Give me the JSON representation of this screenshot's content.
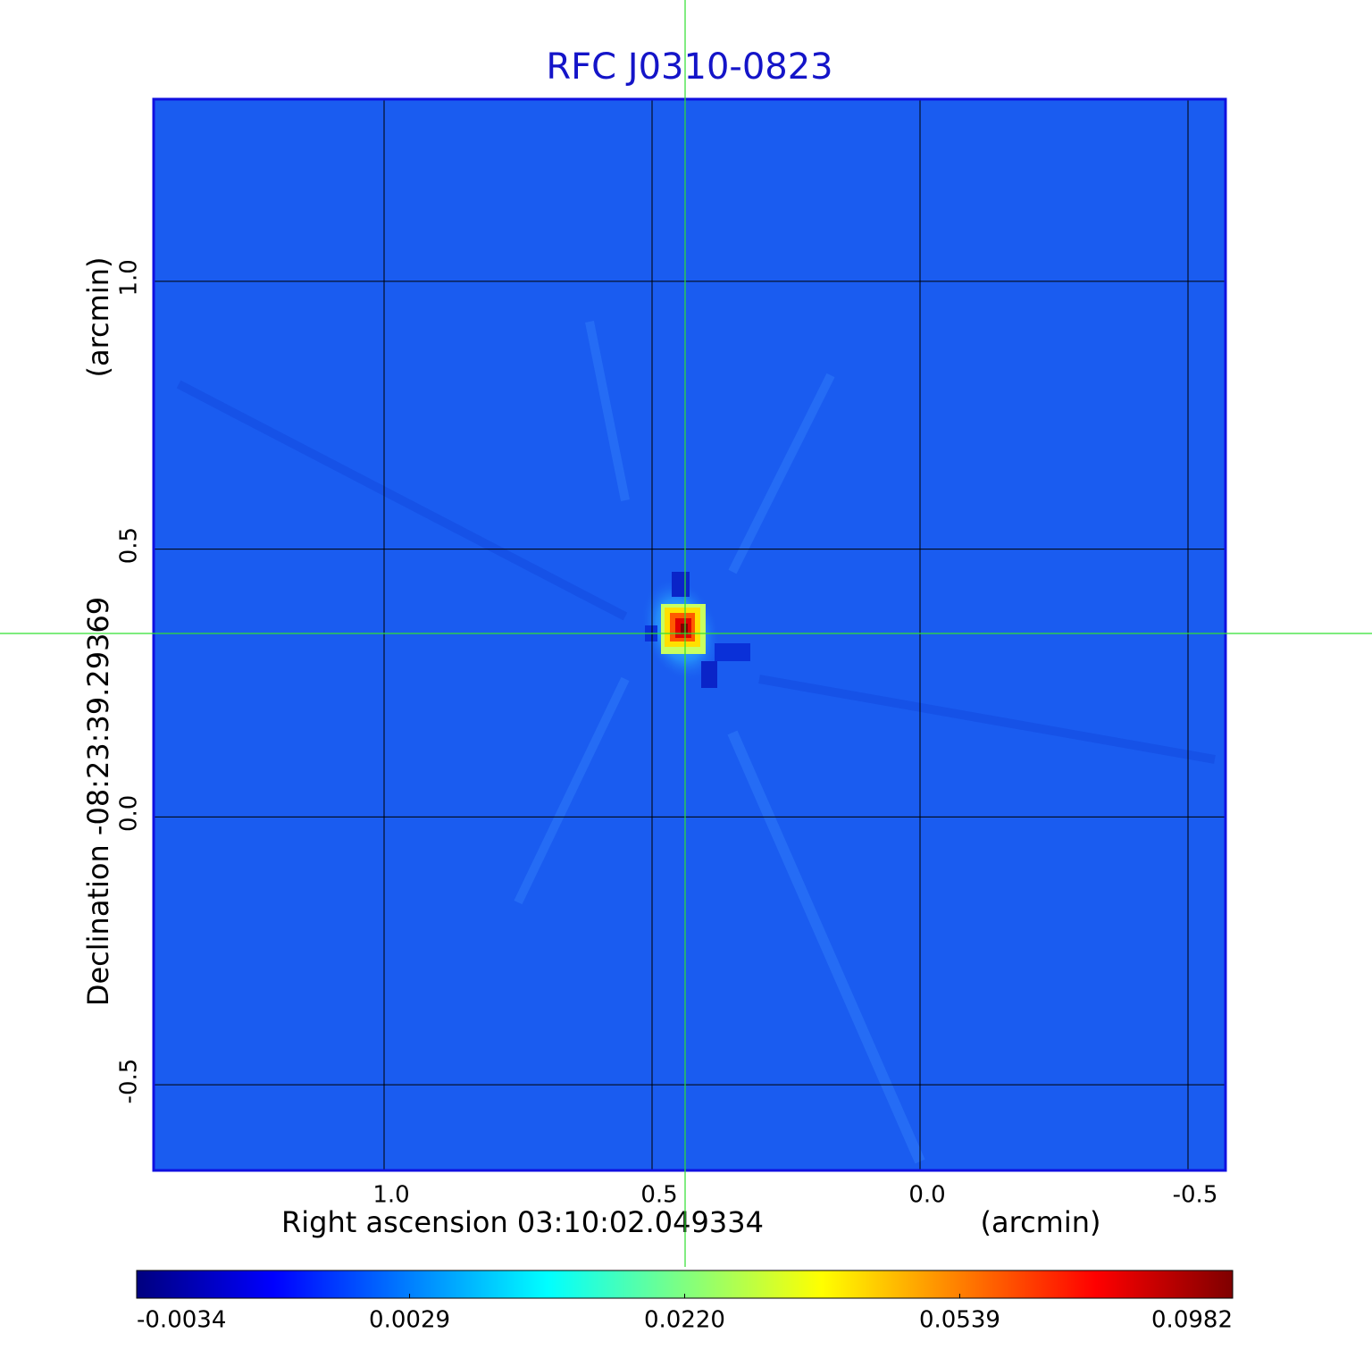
{
  "chart_data": {
    "type": "image",
    "title": "RFC J0310-0823",
    "xlabel": "Right ascension  03:10:02.049334",
    "xunit": "(arcmin)",
    "ylabel": "Declination  -08:23:39.29369",
    "yunit": "(arcmin)",
    "xlim": [
      1.43,
      -0.57
    ],
    "ylim": [
      -0.66,
      1.34
    ],
    "xticks": [
      {
        "value": 1,
        "label": "1.0"
      },
      0.5,
      {
        "value": 0,
        "label": "0.0"
      },
      -0.5
    ],
    "yticks": [
      {
        "value": 1,
        "label": "1.0"
      },
      0.5,
      {
        "value": 0,
        "label": "0.0"
      },
      -0.5
    ],
    "grid": true,
    "colorbar": {
      "scale": "sqrt",
      "lim": [
        -0.0034,
        0.0982
      ],
      "ticks": [
        -0.0034,
        0.0029,
        {
          "value": 0.022,
          "label": "0.0220"
        },
        0.0539,
        0.0982
      ],
      "colormap": [
        "#00007f",
        "#0000ff",
        "#0080ff",
        "#00ffff",
        "#80ff80",
        "#ffff00",
        "#ff8000",
        "#ff0000",
        "#7f0000"
      ]
    }
  }
}
